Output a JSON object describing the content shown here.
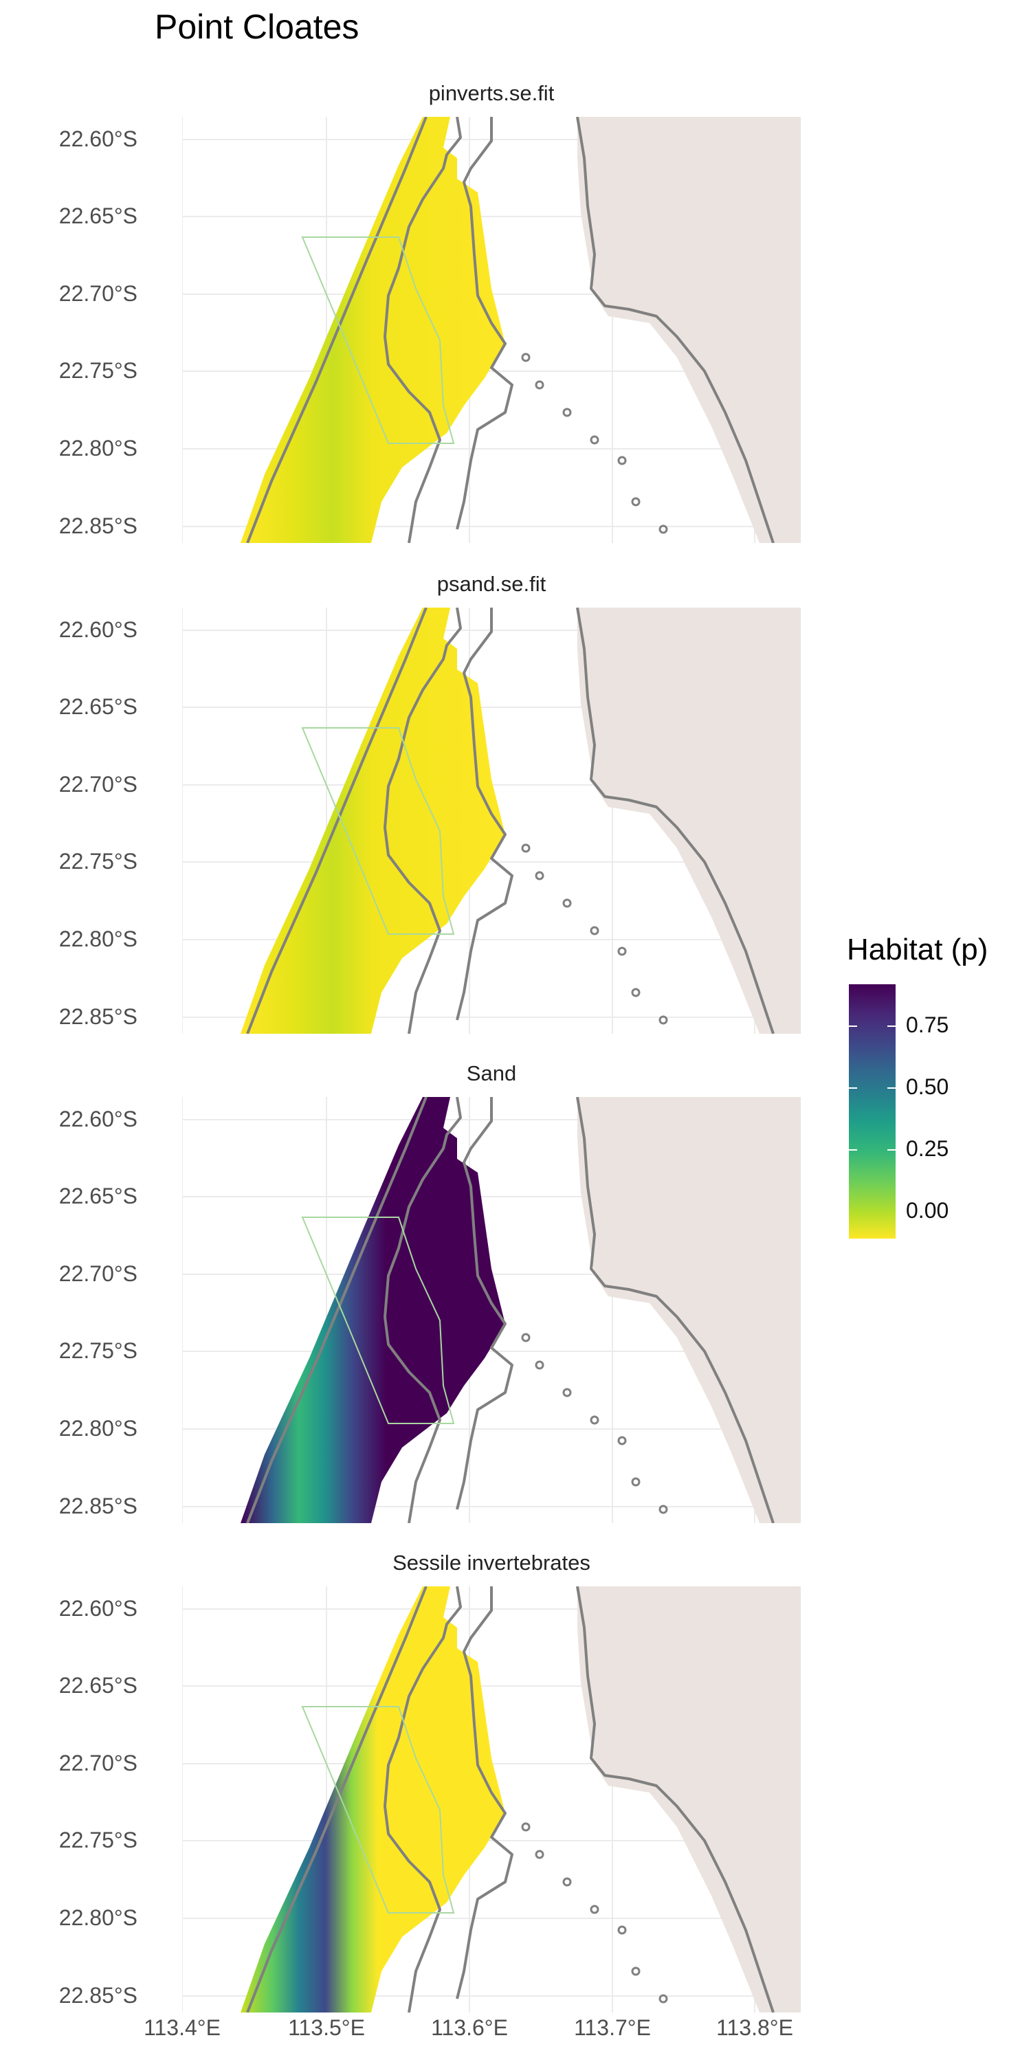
{
  "title": "Point Cloates",
  "panels": [
    {
      "strip": "pinverts.se.fit",
      "style": "low"
    },
    {
      "strip": "psand.se.fit",
      "style": "low"
    },
    {
      "strip": "Sand",
      "style": "sand"
    },
    {
      "strip": "Sessile invertebrates",
      "style": "inverts"
    }
  ],
  "y_ticks": [
    "22.60°S",
    "22.65°S",
    "22.70°S",
    "22.75°S",
    "22.80°S",
    "22.85°S"
  ],
  "x_ticks": [
    "113.4°E",
    "113.5°E",
    "113.6°E",
    "113.7°E",
    "113.8°E"
  ],
  "legend": {
    "title": "Habitat (p)",
    "ticks": [
      "0.75",
      "0.50",
      "0.25",
      "0.00"
    ]
  },
  "colors": {
    "land": "#ebe3df",
    "contour": "#808080",
    "zone_outline": "#a8d8a0",
    "grid": "#ebebeb",
    "viridis_low": "#fde725",
    "viridis_high": "#440154"
  }
}
